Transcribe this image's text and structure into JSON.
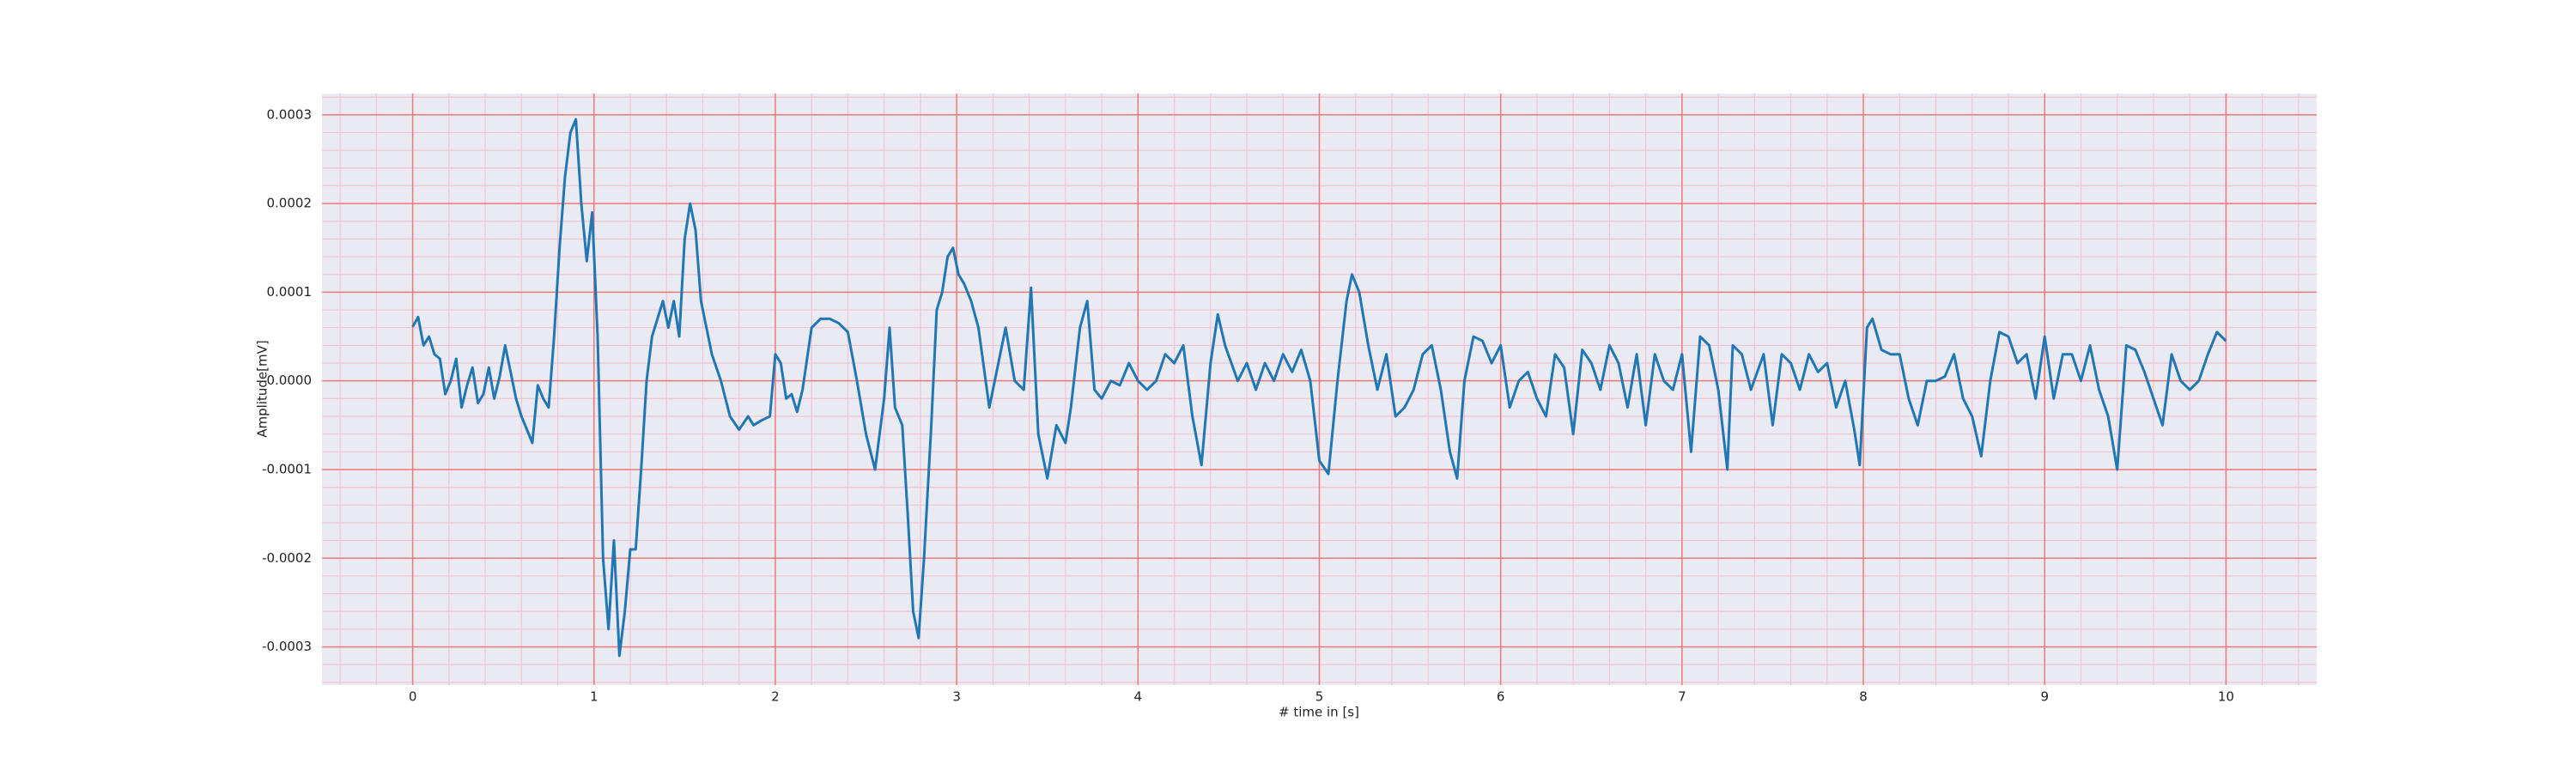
{
  "chart_data": {
    "type": "line",
    "xlabel": "# time in [s]",
    "ylabel": "Amplitude[mV]",
    "xlim": [
      -0.5,
      10.5
    ],
    "xticks": [
      0,
      1,
      2,
      3,
      4,
      5,
      6,
      7,
      8,
      9,
      10
    ],
    "ylim": [
      -0.000343,
      0.000324
    ],
    "yticks": [
      -0.0003,
      -0.0002,
      -0.0001,
      {
        "value": 0,
        "label": "0.0000"
      },
      0.0001,
      0.0002,
      0.0003
    ],
    "grid": true,
    "grid_color": "#f07878",
    "minor_grid_divisions": 5,
    "minor_grid_color": "#f2c4d4",
    "background": "#eaeaf2",
    "series": [
      {
        "color": "#1f77b4",
        "x": [
          0.0,
          0.03,
          0.06,
          0.09,
          0.12,
          0.15,
          0.18,
          0.21,
          0.24,
          0.27,
          0.3,
          0.33,
          0.36,
          0.39,
          0.42,
          0.45,
          0.48,
          0.51,
          0.54,
          0.57,
          0.6,
          0.63,
          0.66,
          0.69,
          0.72,
          0.75,
          0.78,
          0.81,
          0.84,
          0.87,
          0.9,
          0.93,
          0.96,
          0.99,
          1.02,
          1.05,
          1.08,
          1.11,
          1.14,
          1.17,
          1.2,
          1.23,
          1.26,
          1.29,
          1.32,
          1.35,
          1.38,
          1.41,
          1.44,
          1.47,
          1.5,
          1.53,
          1.56,
          1.59,
          1.62,
          1.65,
          1.7,
          1.75,
          1.8,
          1.85,
          1.88,
          1.92,
          1.97,
          2.0,
          2.03,
          2.06,
          2.09,
          2.12,
          2.15,
          2.2,
          2.25,
          2.3,
          2.35,
          2.4,
          2.45,
          2.5,
          2.55,
          2.6,
          2.63,
          2.66,
          2.7,
          2.73,
          2.76,
          2.79,
          2.82,
          2.86,
          2.89,
          2.92,
          2.95,
          2.98,
          3.01,
          3.04,
          3.08,
          3.12,
          3.18,
          3.22,
          3.27,
          3.32,
          3.37,
          3.41,
          3.45,
          3.5,
          3.55,
          3.6,
          3.63,
          3.68,
          3.72,
          3.76,
          3.8,
          3.85,
          3.9,
          3.95,
          4.0,
          4.05,
          4.1,
          4.15,
          4.2,
          4.25,
          4.3,
          4.35,
          4.4,
          4.44,
          4.48,
          4.55,
          4.6,
          4.65,
          4.7,
          4.75,
          4.8,
          4.85,
          4.9,
          4.95,
          5.0,
          5.05,
          5.1,
          5.15,
          5.18,
          5.22,
          5.27,
          5.32,
          5.37,
          5.42,
          5.47,
          5.52,
          5.57,
          5.62,
          5.67,
          5.72,
          5.76,
          5.8,
          5.85,
          5.9,
          5.95,
          6.0,
          6.05,
          6.1,
          6.15,
          6.2,
          6.25,
          6.3,
          6.35,
          6.4,
          6.45,
          6.5,
          6.55,
          6.6,
          6.65,
          6.7,
          6.75,
          6.8,
          6.85,
          6.9,
          6.95,
          7.0,
          7.05,
          7.1,
          7.15,
          7.2,
          7.25,
          7.28,
          7.33,
          7.38,
          7.45,
          7.5,
          7.55,
          7.6,
          7.65,
          7.7,
          7.75,
          7.8,
          7.85,
          7.9,
          7.95,
          7.98,
          8.02,
          8.05,
          8.1,
          8.15,
          8.2,
          8.25,
          8.3,
          8.35,
          8.4,
          8.45,
          8.5,
          8.55,
          8.6,
          8.65,
          8.7,
          8.75,
          8.8,
          8.85,
          8.9,
          8.95,
          9.0,
          9.05,
          9.1,
          9.15,
          9.2,
          9.25,
          9.3,
          9.35,
          9.4,
          9.45,
          9.5,
          9.55,
          9.6,
          9.65,
          9.7,
          9.75,
          9.8,
          9.85,
          9.9,
          9.95,
          10.0
        ],
        "values": [
          6.1e-05,
          7.2e-05,
          4e-05,
          5e-05,
          3e-05,
          2.5e-05,
          -1.5e-05,
          0.0,
          2.5e-05,
          -3e-05,
          -5e-06,
          1.5e-05,
          -2.5e-05,
          -1.5e-05,
          1.5e-05,
          -2e-05,
          5e-06,
          4e-05,
          1e-05,
          -2e-05,
          -4e-05,
          -5.5e-05,
          -7e-05,
          -5e-06,
          -2e-05,
          -3e-05,
          5e-05,
          0.00015,
          0.00023,
          0.00028,
          0.000295,
          0.0002,
          0.000135,
          0.00019,
          5e-05,
          -0.0002,
          -0.00028,
          -0.00018,
          -0.00031,
          -0.00026,
          -0.00019,
          -0.00019,
          -0.0001,
          0.0,
          5e-05,
          7e-05,
          9e-05,
          6e-05,
          9e-05,
          5e-05,
          0.00016,
          0.0002,
          0.00017,
          9e-05,
          6e-05,
          3e-05,
          0.0,
          -4e-05,
          -5.5e-05,
          -4e-05,
          -5e-05,
          -4.5e-05,
          -4e-05,
          3e-05,
          2e-05,
          -2e-05,
          -1.5e-05,
          -3.5e-05,
          -1e-05,
          6e-05,
          7e-05,
          7e-05,
          6.5e-05,
          5.5e-05,
          0.0,
          -6e-05,
          -0.0001,
          -2e-05,
          6e-05,
          -3e-05,
          -5e-05,
          -0.00015,
          -0.00026,
          -0.00029,
          -0.0002,
          -5e-05,
          8e-05,
          0.0001,
          0.00014,
          0.00015,
          0.00012,
          0.00011,
          9e-05,
          6e-05,
          -3e-05,
          1e-05,
          6e-05,
          0.0,
          -1e-05,
          0.000105,
          -6e-05,
          -0.00011,
          -5e-05,
          -7e-05,
          -3e-05,
          6e-05,
          9e-05,
          -1e-05,
          -2e-05,
          0.0,
          -5e-06,
          2e-05,
          0.0,
          -1e-05,
          0.0,
          3e-05,
          2e-05,
          4e-05,
          -4e-05,
          -9.5e-05,
          2e-05,
          7.5e-05,
          4e-05,
          0.0,
          2e-05,
          -1e-05,
          2e-05,
          0.0,
          3e-05,
          1e-05,
          3.5e-05,
          0.0,
          -9e-05,
          -0.000105,
          0.0,
          9e-05,
          0.00012,
          0.0001,
          4e-05,
          -1e-05,
          3e-05,
          -4e-05,
          -3e-05,
          -1e-05,
          3e-05,
          4e-05,
          -1e-05,
          -8e-05,
          -0.00011,
          0.0,
          5e-05,
          4.5e-05,
          2e-05,
          4e-05,
          -3e-05,
          0.0,
          1e-05,
          -2e-05,
          -4e-05,
          3e-05,
          1.5e-05,
          -6e-05,
          3.5e-05,
          2e-05,
          -1e-05,
          4e-05,
          2e-05,
          -3e-05,
          3e-05,
          -5e-05,
          3e-05,
          0.0,
          -1e-05,
          3e-05,
          -8e-05,
          5e-05,
          4e-05,
          -1e-05,
          -0.0001,
          4e-05,
          3e-05,
          -1e-05,
          3e-05,
          -5e-05,
          3e-05,
          2e-05,
          -1e-05,
          3e-05,
          1e-05,
          2e-05,
          -3e-05,
          0.0,
          -5.5e-05,
          -9.5e-05,
          6e-05,
          7e-05,
          3.5e-05,
          3e-05,
          3e-05,
          -2e-05,
          -5e-05,
          0.0,
          0.0,
          5e-06,
          3e-05,
          -2e-05,
          -4e-05,
          -8.5e-05,
          0.0,
          5.5e-05,
          5e-05,
          2e-05,
          3e-05,
          -2e-05,
          5e-05,
          -2e-05,
          3e-05,
          3e-05,
          0.0,
          4e-05,
          -1e-05,
          -4e-05,
          -0.0001,
          4e-05,
          3.5e-05,
          1e-05,
          -2e-05,
          -5e-05,
          3e-05,
          0.0,
          -1e-05,
          0.0,
          3e-05,
          5.5e-05,
          4.5e-05
        ]
      }
    ]
  }
}
